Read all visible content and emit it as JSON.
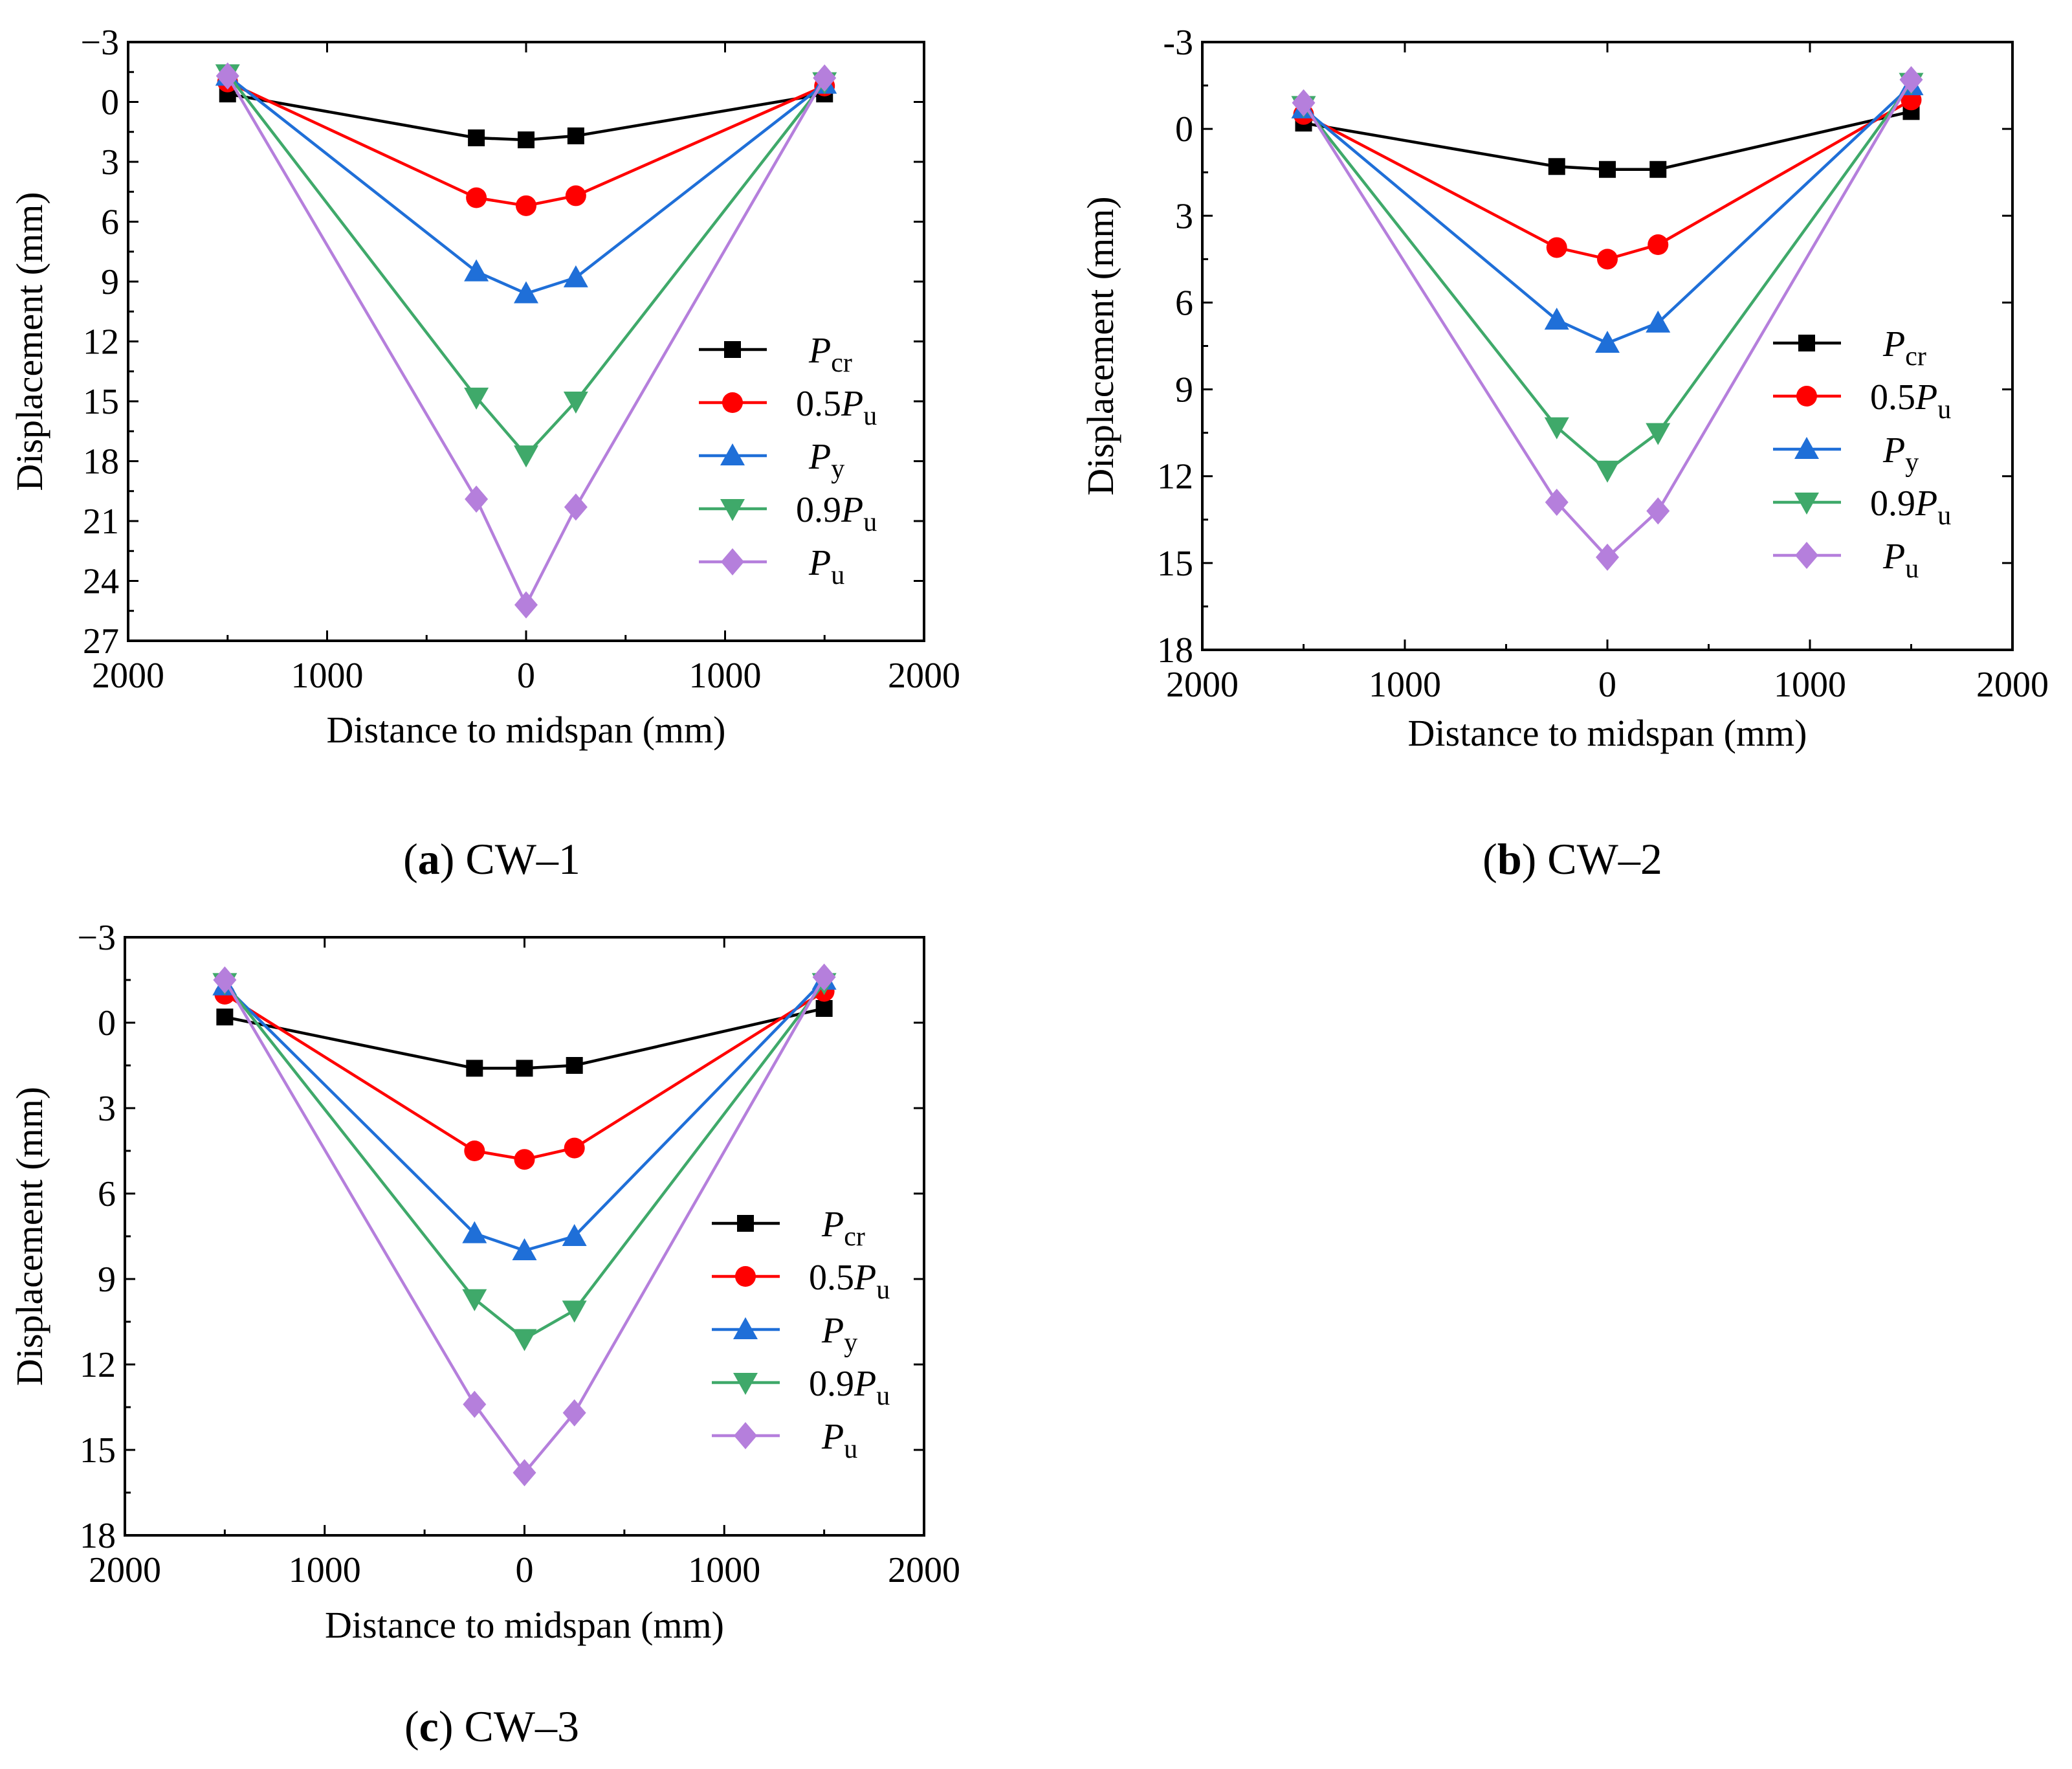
{
  "chart_data": [
    {
      "id": "a",
      "type": "line",
      "caption_letter": "a",
      "caption_text": "CW–1",
      "xlabel": "Distance to midspan (mm)",
      "ylabel": "Displacement (mm)",
      "x_tick_values": [
        -2000,
        -1000,
        0,
        1000,
        2000
      ],
      "x_tick_labels": [
        "2000",
        "1000",
        "0",
        "1000",
        "2000"
      ],
      "xlim": [
        -2000,
        2000
      ],
      "y_tick_values": [
        -3,
        0,
        3,
        6,
        9,
        12,
        15,
        18,
        21,
        24,
        27
      ],
      "y_tick_labels": [
        "−3",
        "0",
        "3",
        "6",
        "9",
        "12",
        "15",
        "18",
        "21",
        "24",
        "27"
      ],
      "ylim": [
        -3,
        27
      ],
      "y_inverted": true,
      "legend_position": "right-middle",
      "series": [
        {
          "name": "Pcr",
          "label_main": "P",
          "label_sub": "cr",
          "label_prefix": "",
          "color": "#000000",
          "marker": "square",
          "x": [
            -1500,
            -250,
            0,
            250,
            1500
          ],
          "y": [
            -0.4,
            1.8,
            1.9,
            1.7,
            -0.4
          ]
        },
        {
          "name": "0.5Pu",
          "label_main": "P",
          "label_sub": "u",
          "label_prefix": "0.5",
          "color": "#ff0000",
          "marker": "circle",
          "x": [
            -1500,
            -250,
            0,
            250,
            1500
          ],
          "y": [
            -1.0,
            4.8,
            5.2,
            4.7,
            -0.8
          ]
        },
        {
          "name": "Py",
          "label_main": "P",
          "label_sub": "y",
          "label_prefix": "",
          "color": "#1f6fd8",
          "marker": "triangle-up",
          "x": [
            -1500,
            -250,
            0,
            250,
            1500
          ],
          "y": [
            -1.3,
            8.5,
            9.6,
            8.8,
            -0.9
          ]
        },
        {
          "name": "0.9Pu",
          "label_main": "P",
          "label_sub": "u",
          "label_prefix": "0.9",
          "color": "#3fa96a",
          "marker": "triangle-down",
          "x": [
            -1500,
            -250,
            0,
            250,
            1500
          ],
          "y": [
            -1.4,
            14.8,
            17.7,
            15.0,
            -1.0
          ]
        },
        {
          "name": "Pu",
          "label_main": "P",
          "label_sub": "u",
          "label_prefix": "",
          "color": "#b57fdc",
          "marker": "diamond",
          "x": [
            -1500,
            -250,
            0,
            250,
            1500
          ],
          "y": [
            -1.3,
            19.9,
            25.2,
            20.3,
            -1.2
          ]
        }
      ]
    },
    {
      "id": "b",
      "type": "line",
      "caption_letter": "b",
      "caption_text": "CW–2",
      "xlabel": "Distance to midspan (mm)",
      "ylabel": "Displacement (mm)",
      "x_tick_values": [
        -2000,
        -1000,
        0,
        1000,
        2000
      ],
      "x_tick_labels": [
        "2000",
        "1000",
        "0",
        "1000",
        "2000"
      ],
      "xlim": [
        -2000,
        2000
      ],
      "y_tick_values": [
        -3,
        0,
        3,
        6,
        9,
        12,
        15,
        18
      ],
      "y_tick_labels": [
        "-3",
        "0",
        "3",
        "6",
        "9",
        "12",
        "15",
        "18"
      ],
      "ylim": [
        -3,
        18
      ],
      "y_inverted": true,
      "legend_position": "right-middle",
      "series": [
        {
          "name": "Pcr",
          "label_main": "P",
          "label_sub": "cr",
          "label_prefix": "",
          "color": "#000000",
          "marker": "square",
          "x": [
            -1500,
            -250,
            0,
            250,
            1500
          ],
          "y": [
            -0.2,
            1.3,
            1.4,
            1.4,
            -0.6
          ]
        },
        {
          "name": "0.5Pu",
          "label_main": "P",
          "label_sub": "u",
          "label_prefix": "0.5",
          "color": "#ff0000",
          "marker": "circle",
          "x": [
            -1500,
            -250,
            0,
            250,
            1500
          ],
          "y": [
            -0.5,
            4.1,
            4.5,
            4.0,
            -1.0
          ]
        },
        {
          "name": "Py",
          "label_main": "P",
          "label_sub": "y",
          "label_prefix": "",
          "color": "#1f6fd8",
          "marker": "triangle-up",
          "x": [
            -1500,
            -250,
            0,
            250,
            1500
          ],
          "y": [
            -0.7,
            6.6,
            7.4,
            6.7,
            -1.5
          ]
        },
        {
          "name": "0.9Pu",
          "label_main": "P",
          "label_sub": "u",
          "label_prefix": "0.9",
          "color": "#3fa96a",
          "marker": "triangle-down",
          "x": [
            -1500,
            -250,
            0,
            250,
            1500
          ],
          "y": [
            -0.8,
            10.3,
            11.8,
            10.5,
            -1.6
          ]
        },
        {
          "name": "Pu",
          "label_main": "P",
          "label_sub": "u",
          "label_prefix": "",
          "color": "#b57fdc",
          "marker": "diamond",
          "x": [
            -1500,
            -250,
            0,
            250,
            1500
          ],
          "y": [
            -0.9,
            12.9,
            14.8,
            13.2,
            -1.7
          ]
        }
      ]
    },
    {
      "id": "c",
      "type": "line",
      "caption_letter": "c",
      "caption_text": "CW–3",
      "xlabel": "Distance to midspan (mm)",
      "ylabel": "Displacement (mm)",
      "x_tick_values": [
        -2000,
        -1000,
        0,
        1000,
        2000
      ],
      "x_tick_labels": [
        "2000",
        "1000",
        "0",
        "1000",
        "2000"
      ],
      "xlim": [
        -2000,
        2000
      ],
      "y_tick_values": [
        -3,
        0,
        3,
        6,
        9,
        12,
        15,
        18
      ],
      "y_tick_labels": [
        "−3",
        "0",
        "3",
        "6",
        "9",
        "12",
        "15",
        "18"
      ],
      "ylim": [
        -3,
        18
      ],
      "y_inverted": true,
      "legend_position": "right-middle",
      "series": [
        {
          "name": "Pcr",
          "label_main": "P",
          "label_sub": "cr",
          "label_prefix": "",
          "color": "#000000",
          "marker": "square",
          "x": [
            -1500,
            -250,
            0,
            250,
            1500
          ],
          "y": [
            -0.2,
            1.6,
            1.6,
            1.5,
            -0.5
          ]
        },
        {
          "name": "0.5Pu",
          "label_main": "P",
          "label_sub": "u",
          "label_prefix": "0.5",
          "color": "#ff0000",
          "marker": "circle",
          "x": [
            -1500,
            -250,
            0,
            250,
            1500
          ],
          "y": [
            -1.0,
            4.5,
            4.8,
            4.4,
            -1.1
          ]
        },
        {
          "name": "Py",
          "label_main": "P",
          "label_sub": "y",
          "label_prefix": "",
          "color": "#1f6fd8",
          "marker": "triangle-up",
          "x": [
            -1500,
            -250,
            0,
            250,
            1500
          ],
          "y": [
            -1.3,
            7.4,
            8.0,
            7.5,
            -1.5
          ]
        },
        {
          "name": "0.9Pu",
          "label_main": "P",
          "label_sub": "u",
          "label_prefix": "0.9",
          "color": "#3fa96a",
          "marker": "triangle-down",
          "x": [
            -1500,
            -250,
            0,
            250,
            1500
          ],
          "y": [
            -1.4,
            9.7,
            11.1,
            10.1,
            -1.4
          ]
        },
        {
          "name": "Pu",
          "label_main": "P",
          "label_sub": "u",
          "label_prefix": "",
          "color": "#b57fdc",
          "marker": "diamond",
          "x": [
            -1500,
            -250,
            0,
            250,
            1500
          ],
          "y": [
            -1.5,
            13.4,
            15.8,
            13.7,
            -1.6
          ]
        }
      ]
    }
  ]
}
